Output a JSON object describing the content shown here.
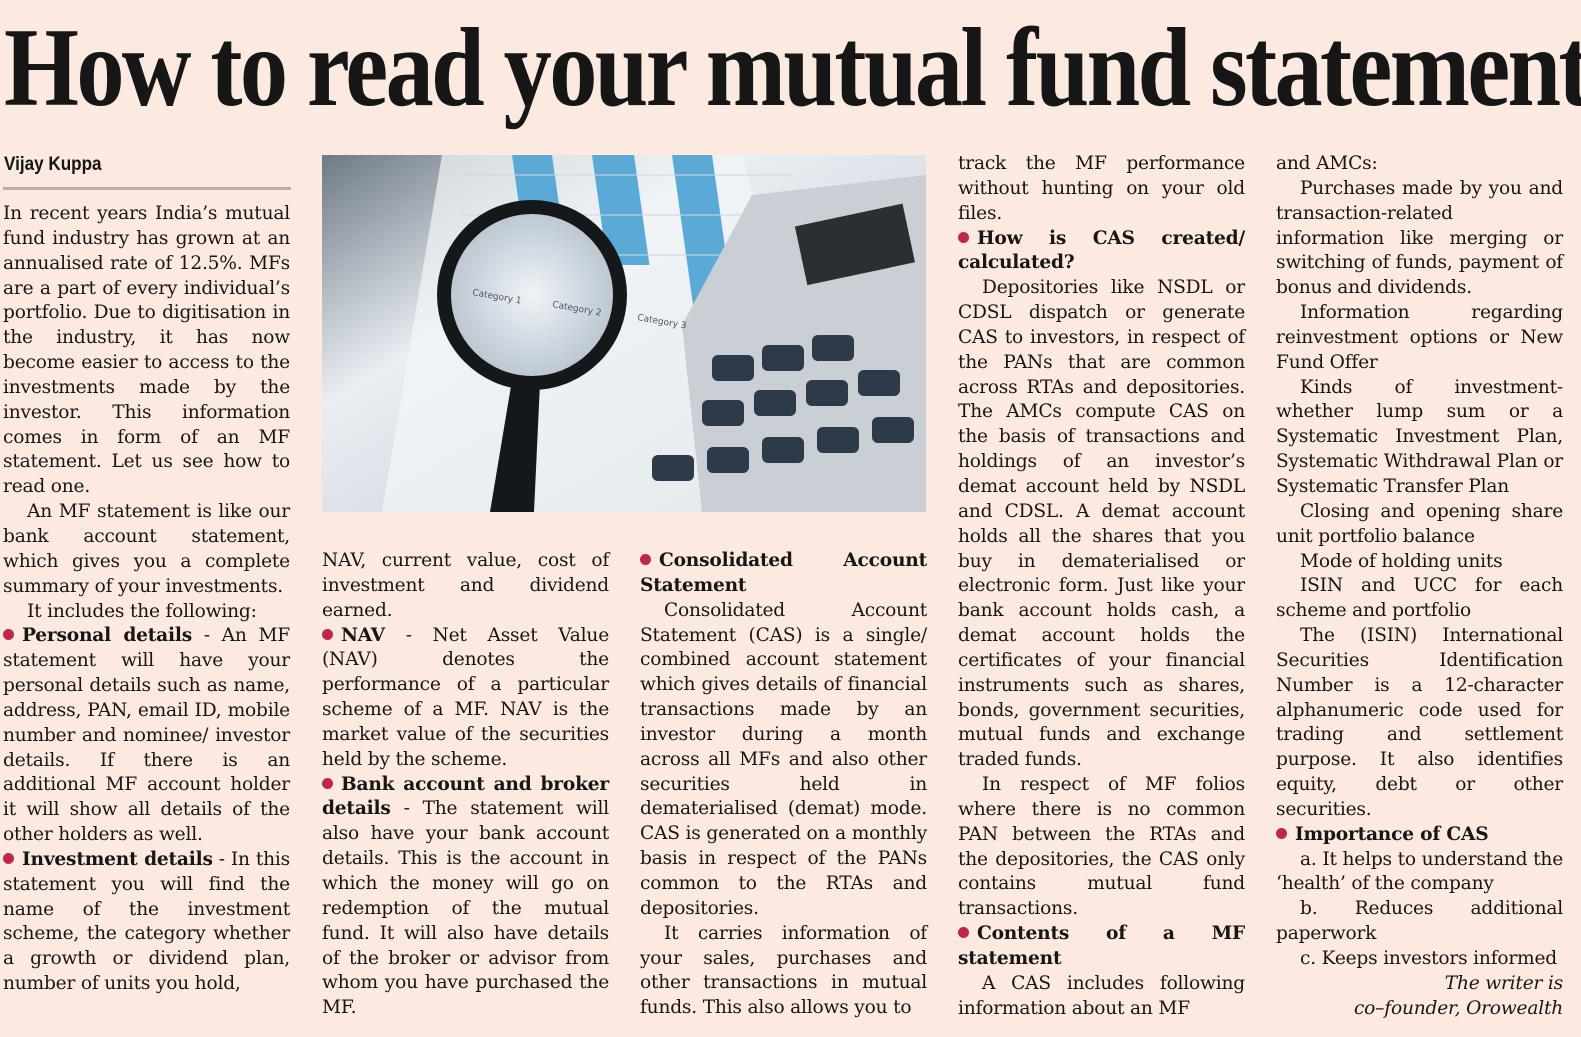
{
  "article": {
    "title": "How to read your mutual fund statement",
    "byline": "Vijay Kuppa",
    "accent_color": "#c0264a",
    "photo_labels": [
      "Category 1",
      "Category 2",
      "Category 3"
    ],
    "columns": [
      [
        {
          "type": "p",
          "indent": false,
          "text": "In recent years India’s mutual fund industry has grown at an annualised rate of 12.5%. MFs are a part of every individual’s portfolio. Due to digitisation in the industry, it has now become easier to access to the investments made by the investor. This information comes in form of an MF statement. Let us see how to read one."
        },
        {
          "type": "p",
          "indent": true,
          "text": "An MF statement is like our bank account statement, which gives you a complete summary of your investments."
        },
        {
          "type": "p",
          "indent": true,
          "text": "It includes the following:"
        },
        {
          "type": "bullet",
          "bold": "Personal details",
          "text": " - An MF statement will have your personal details such as name, address, PAN, email ID, mobile number and nominee/ investor details. If there is an additional MF account holder it will show all details of the other holders as well."
        },
        {
          "type": "bullet",
          "bold": "Investment details",
          "text": " - In this statement you will find the name of the investment scheme, the category whether a growth or dividend plan, number of units you hold,"
        }
      ],
      [
        {
          "type": "p",
          "indent": false,
          "text": "NAV, current value, cost of investment and dividend earned."
        },
        {
          "type": "bullet",
          "bold": "NAV",
          "text": " - Net Asset Value (NAV) denotes the performance of a particular scheme of a MF. NAV is the market value of the securities held by the scheme."
        },
        {
          "type": "bullet",
          "bold": "Bank account and broker details",
          "text": " - The statement will also have your bank account details. This is the account in which the money will go on redemption of the mutual fund. It will also have details of the broker or advisor from whom you have purchased the MF."
        }
      ],
      [
        {
          "type": "bullet",
          "bold": "Consolidated Account Statement",
          "text": ""
        },
        {
          "type": "p",
          "indent": true,
          "text": "Consolidated Account Statement (CAS) is a single/ combined account statement which gives details of financial transactions made by an investor during a month across all MFs and also other securities held in dematerialised (demat) mode. CAS is generated on a monthly basis in respect of the PANs common to the RTAs and depositories."
        },
        {
          "type": "p",
          "indent": true,
          "text": "It carries information of your sales, purchases and other transactions in mutual funds. This also allows you to"
        }
      ],
      [
        {
          "type": "p",
          "indent": false,
          "text": "track the MF performance without hunting on your old files."
        },
        {
          "type": "bullet",
          "bold": "How is CAS created/ calculated?",
          "text": ""
        },
        {
          "type": "p",
          "indent": true,
          "text": "Depositories like NSDL or CDSL dispatch or generate CAS to investors, in respect of the PANs that are common across RTAs and depositories. The AMCs compute CAS on the basis of transactions and holdings of an investor’s demat account held by NSDL and CDSL. A demat account holds all the shares that you buy in dematerialised or electronic form. Just like your bank account holds cash, a demat account holds the certificates of your financial instruments such as shares, bonds, government securities, mutual funds and exchange traded funds."
        },
        {
          "type": "p",
          "indent": true,
          "text": "In respect of MF folios where there is no common PAN between the RTAs and the depositories, the CAS only contains mutual fund transactions."
        },
        {
          "type": "bullet",
          "bold": "Contents of a MF statement",
          "text": ""
        },
        {
          "type": "p",
          "indent": true,
          "text": "A CAS includes following information about an MF"
        }
      ],
      [
        {
          "type": "p",
          "indent": false,
          "text": "and AMCs:"
        },
        {
          "type": "p",
          "indent": true,
          "text": "Purchases made by you and transaction-related information like merging or switching of funds, payment of bonus and dividends."
        },
        {
          "type": "p",
          "indent": true,
          "text": "Information regarding reinvestment options or New Fund Offer"
        },
        {
          "type": "p",
          "indent": true,
          "text": "Kinds of investment-whether lump sum or a Systematic Investment Plan, Systematic Withdrawal Plan or Systematic Transfer Plan"
        },
        {
          "type": "p",
          "indent": true,
          "text": "Closing and opening share unit portfolio balance"
        },
        {
          "type": "p",
          "indent": true,
          "text": "Mode of holding units"
        },
        {
          "type": "p",
          "indent": true,
          "text": "ISIN and UCC for each scheme and portfolio"
        },
        {
          "type": "p",
          "indent": true,
          "text": "The (ISIN) International Securities Identification Number is a 12-character alphanumeric code used for trading and settlement purpose. It also identifies equity, debt or other securities."
        },
        {
          "type": "bullet",
          "bold": "Importance of CAS",
          "text": ""
        },
        {
          "type": "p",
          "indent": true,
          "text": "a. It helps to understand the ‘health’ of the company"
        },
        {
          "type": "p",
          "indent": true,
          "text": "b. Reduces additional paperwork"
        },
        {
          "type": "p",
          "indent": true,
          "text": "c. Keeps investors informed"
        },
        {
          "type": "sig",
          "text": "The writer is"
        },
        {
          "type": "sig",
          "text": "co–founder, Orowealth"
        }
      ]
    ]
  }
}
